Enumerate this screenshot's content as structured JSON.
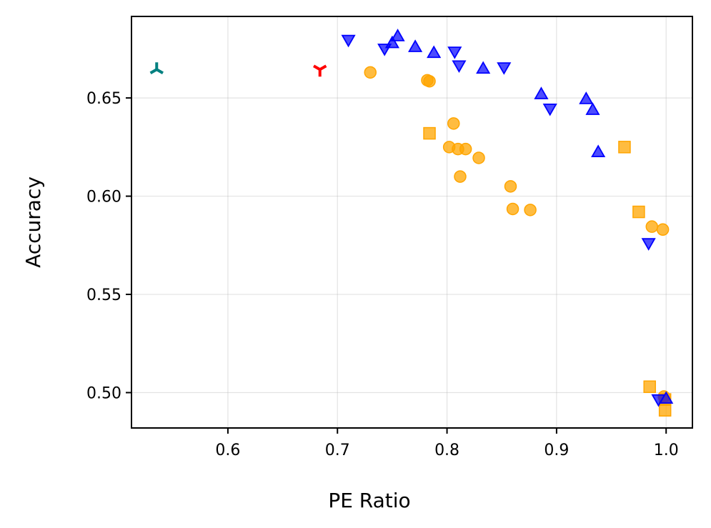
{
  "chart_data": {
    "type": "scatter",
    "title": "",
    "xlabel": "PE Ratio",
    "ylabel": "Accuracy",
    "xlim": [
      0.512,
      1.024
    ],
    "ylim": [
      0.482,
      0.6915
    ],
    "xticks": [
      0.6,
      0.7,
      0.8,
      0.9,
      1.0
    ],
    "xtick_labels": [
      "0.6",
      "0.7",
      "0.8",
      "0.9",
      "1.0"
    ],
    "yticks": [
      0.5,
      0.55,
      0.6,
      0.65
    ],
    "ytick_labels": [
      "0.50",
      "0.55",
      "0.60",
      "0.65"
    ],
    "grid": true,
    "legend": "none",
    "series": [
      {
        "name": "orange-circles",
        "marker": "circle",
        "color": "#FFA500",
        "points": [
          {
            "x": 0.73,
            "y": 0.663
          },
          {
            "x": 0.782,
            "y": 0.659
          },
          {
            "x": 0.784,
            "y": 0.6585
          },
          {
            "x": 0.806,
            "y": 0.637
          },
          {
            "x": 0.802,
            "y": 0.625
          },
          {
            "x": 0.81,
            "y": 0.624
          },
          {
            "x": 0.817,
            "y": 0.624
          },
          {
            "x": 0.829,
            "y": 0.6195
          },
          {
            "x": 0.812,
            "y": 0.61
          },
          {
            "x": 0.858,
            "y": 0.605
          },
          {
            "x": 0.86,
            "y": 0.5935
          },
          {
            "x": 0.876,
            "y": 0.593
          },
          {
            "x": 0.987,
            "y": 0.5845
          },
          {
            "x": 0.997,
            "y": 0.583
          },
          {
            "x": 0.998,
            "y": 0.498
          }
        ]
      },
      {
        "name": "orange-squares",
        "marker": "square",
        "color": "#FFA500",
        "points": [
          {
            "x": 0.784,
            "y": 0.632
          },
          {
            "x": 0.962,
            "y": 0.625
          },
          {
            "x": 0.975,
            "y": 0.592
          },
          {
            "x": 0.985,
            "y": 0.503
          },
          {
            "x": 0.999,
            "y": 0.4965
          },
          {
            "x": 0.999,
            "y": 0.491
          }
        ]
      },
      {
        "name": "blue-triangles-up",
        "marker": "triangle-up",
        "color": "#0000FF",
        "points": [
          {
            "x": 0.75,
            "y": 0.678
          },
          {
            "x": 0.755,
            "y": 0.6815
          },
          {
            "x": 0.771,
            "y": 0.676
          },
          {
            "x": 0.788,
            "y": 0.673
          },
          {
            "x": 0.833,
            "y": 0.665
          },
          {
            "x": 0.886,
            "y": 0.652
          },
          {
            "x": 0.927,
            "y": 0.6495
          },
          {
            "x": 0.933,
            "y": 0.644
          },
          {
            "x": 0.938,
            "y": 0.6225
          },
          {
            "x": 1.0,
            "y": 0.497
          }
        ]
      },
      {
        "name": "blue-triangles-down",
        "marker": "triangle-down",
        "color": "#0000FF",
        "points": [
          {
            "x": 0.71,
            "y": 0.6795
          },
          {
            "x": 0.743,
            "y": 0.675
          },
          {
            "x": 0.807,
            "y": 0.6735
          },
          {
            "x": 0.811,
            "y": 0.6665
          },
          {
            "x": 0.852,
            "y": 0.6655
          },
          {
            "x": 0.894,
            "y": 0.6445
          },
          {
            "x": 0.984,
            "y": 0.576
          },
          {
            "x": 0.993,
            "y": 0.4965
          }
        ]
      },
      {
        "name": "teal-tri-up",
        "marker": "tri-up",
        "color": "#008080",
        "points": [
          {
            "x": 0.535,
            "y": 0.6645
          }
        ]
      },
      {
        "name": "red-tri-down",
        "marker": "tri-down",
        "color": "#FF0000",
        "points": [
          {
            "x": 0.684,
            "y": 0.6645
          }
        ]
      }
    ]
  }
}
